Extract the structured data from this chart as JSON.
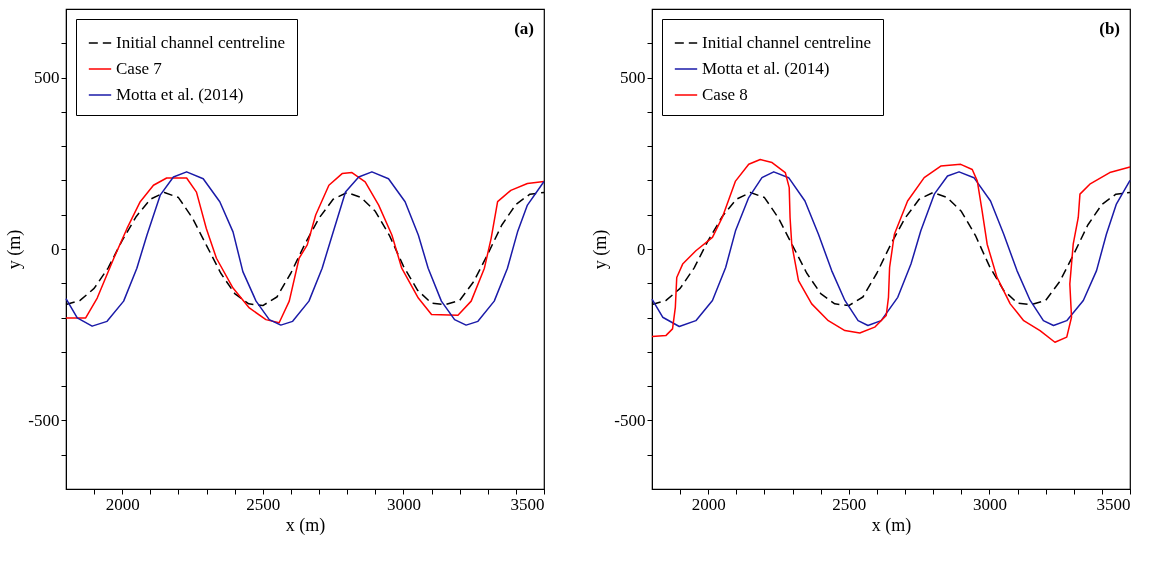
{
  "chart_data": [
    {
      "type": "line",
      "xlabel": "x (m)",
      "ylabel": "y (m)",
      "annotations": [
        "(a)"
      ],
      "xlim": [
        1800,
        3500
      ],
      "ylim": [
        -700,
        700
      ],
      "xticks": [
        {
          "value": 1900,
          "label": null
        },
        2000,
        {
          "value": 2100,
          "label": null
        },
        {
          "value": 2200,
          "label": null
        },
        {
          "value": 2300,
          "label": null
        },
        {
          "value": 2400,
          "label": null
        },
        2500,
        {
          "value": 2600,
          "label": null
        },
        {
          "value": 2700,
          "label": null
        },
        {
          "value": 2800,
          "label": null
        },
        {
          "value": 2900,
          "label": null
        },
        3000,
        {
          "value": 3100,
          "label": null
        },
        {
          "value": 3200,
          "label": null
        },
        {
          "value": 3300,
          "label": null
        },
        {
          "value": 3400,
          "label": null
        },
        3500
      ],
      "yticks": [
        {
          "value": -600,
          "label": null
        },
        -500,
        {
          "value": -400,
          "label": null
        },
        {
          "value": -300,
          "label": null
        },
        {
          "value": -200,
          "label": null
        },
        {
          "value": -100,
          "label": null
        },
        0,
        {
          "value": 100,
          "label": null
        },
        {
          "value": 200,
          "label": null
        },
        {
          "value": 300,
          "label": null
        },
        {
          "value": 400,
          "label": null
        },
        500,
        {
          "value": 600,
          "label": null
        }
      ],
      "grid": false,
      "legend": "top left",
      "series": [
        {
          "name": "Initial channel centreline",
          "color": "#000000",
          "line_style": "dashed",
          "x": [
            1800,
            1850,
            1900,
            1950,
            2000,
            2050,
            2100,
            2150,
            2200,
            2250,
            2300,
            2350,
            2400,
            2450,
            2500,
            2550,
            2600,
            2650,
            2700,
            2750,
            2800,
            2850,
            2900,
            2950,
            3000,
            3050,
            3100,
            3150,
            3200,
            3250,
            3300,
            3350,
            3400,
            3450,
            3500
          ],
          "values": [
            -162,
            -150,
            -115,
            -55,
            25,
            95,
            145,
            165,
            150,
            90,
            10,
            -70,
            -130,
            -160,
            -165,
            -140,
            -70,
            15,
            90,
            145,
            165,
            150,
            110,
            40,
            -50,
            -120,
            -158,
            -162,
            -150,
            -95,
            -15,
            70,
            130,
            160,
            165
          ]
        },
        {
          "name": "Case 7",
          "color": "#ff0000",
          "line_style": "solid",
          "x": [
            1800,
            1870,
            1911,
            1970,
            2017,
            2064,
            2111,
            2158,
            2229,
            2264,
            2299,
            2335,
            2394,
            2452,
            2511,
            2558,
            2594,
            2629,
            2658,
            2688,
            2735,
            2782,
            2817,
            2864,
            2912,
            2959,
            2994,
            3053,
            3100,
            3194,
            3241,
            3288,
            3312,
            3335,
            3382,
            3441,
            3500
          ],
          "values": [
            -201,
            -201,
            -143,
            -27,
            60,
            138,
            186,
            207,
            207,
            166,
            60,
            -27,
            -114,
            -172,
            -206,
            -215,
            -152,
            -27,
            12,
            99,
            186,
            220,
            223,
            196,
            128,
            41,
            -56,
            -143,
            -191,
            -193,
            -152,
            -56,
            31,
            138,
            171,
            191,
            197
          ]
        },
        {
          "name": "Motta et al. (2014)",
          "color": "#1a1aa8",
          "line_style": "solid",
          "x": [
            1800,
            1840,
            1893,
            1946,
            2005,
            2052,
            2088,
            2135,
            2182,
            2229,
            2288,
            2347,
            2394,
            2429,
            2476,
            2523,
            2564,
            2606,
            2664,
            2711,
            2747,
            2794,
            2841,
            2888,
            2947,
            3006,
            3053,
            3088,
            3135,
            3182,
            3223,
            3265,
            3323,
            3370,
            3406,
            3441,
            3500
          ],
          "values": [
            -145,
            -201,
            -225,
            -211,
            -152,
            -56,
            41,
            157,
            210,
            225,
            205,
            138,
            50,
            -66,
            -152,
            -206,
            -222,
            -211,
            -152,
            -56,
            41,
            166,
            210,
            225,
            205,
            138,
            41,
            -56,
            -152,
            -206,
            -222,
            -211,
            -152,
            -56,
            50,
            128,
            197
          ]
        }
      ]
    },
    {
      "type": "line",
      "xlabel": "x (m)",
      "ylabel": "y (m)",
      "annotations": [
        "(b)"
      ],
      "xlim": [
        1800,
        3500
      ],
      "ylim": [
        -700,
        700
      ],
      "xticks": [
        {
          "value": 1900,
          "label": null
        },
        2000,
        {
          "value": 2100,
          "label": null
        },
        {
          "value": 2200,
          "label": null
        },
        {
          "value": 2300,
          "label": null
        },
        {
          "value": 2400,
          "label": null
        },
        2500,
        {
          "value": 2600,
          "label": null
        },
        {
          "value": 2700,
          "label": null
        },
        {
          "value": 2800,
          "label": null
        },
        {
          "value": 2900,
          "label": null
        },
        3000,
        {
          "value": 3100,
          "label": null
        },
        {
          "value": 3200,
          "label": null
        },
        {
          "value": 3300,
          "label": null
        },
        {
          "value": 3400,
          "label": null
        },
        3500
      ],
      "yticks": [
        {
          "value": -600,
          "label": null
        },
        -500,
        {
          "value": -400,
          "label": null
        },
        {
          "value": -300,
          "label": null
        },
        {
          "value": -200,
          "label": null
        },
        {
          "value": -100,
          "label": null
        },
        0,
        {
          "value": 100,
          "label": null
        },
        {
          "value": 200,
          "label": null
        },
        {
          "value": 300,
          "label": null
        },
        {
          "value": 400,
          "label": null
        },
        500,
        {
          "value": 600,
          "label": null
        }
      ],
      "grid": false,
      "legend": "top left",
      "series": [
        {
          "name": "Initial channel centreline",
          "color": "#000000",
          "line_style": "dashed",
          "x": [
            1800,
            1850,
            1900,
            1950,
            2000,
            2050,
            2100,
            2150,
            2200,
            2250,
            2300,
            2350,
            2400,
            2450,
            2500,
            2550,
            2600,
            2650,
            2700,
            2750,
            2800,
            2850,
            2900,
            2950,
            3000,
            3050,
            3100,
            3150,
            3200,
            3250,
            3300,
            3350,
            3400,
            3450,
            3500
          ],
          "values": [
            -162,
            -150,
            -115,
            -55,
            25,
            95,
            145,
            165,
            150,
            90,
            10,
            -70,
            -130,
            -160,
            -165,
            -140,
            -70,
            15,
            90,
            145,
            165,
            150,
            110,
            40,
            -50,
            -120,
            -158,
            -162,
            -150,
            -95,
            -15,
            70,
            130,
            160,
            165
          ]
        },
        {
          "name": "Motta et al. (2014)",
          "color": "#1a1aa8",
          "line_style": "solid",
          "x": [
            1800,
            1838,
            1897,
            1956,
            2015,
            2062,
            2097,
            2144,
            2191,
            2233,
            2286,
            2344,
            2392,
            2439,
            2486,
            2533,
            2568,
            2615,
            2674,
            2721,
            2756,
            2804,
            2851,
            2892,
            2945,
            3004,
            3051,
            3098,
            3145,
            3192,
            3228,
            3275,
            3334,
            3381,
            3416,
            3451,
            3500
          ],
          "values": [
            -146,
            -199,
            -226,
            -209,
            -150,
            -54,
            53,
            150,
            208,
            225,
            208,
            140,
            43,
            -63,
            -150,
            -209,
            -223,
            -209,
            -141,
            -44,
            53,
            160,
            213,
            225,
            208,
            140,
            43,
            -63,
            -150,
            -209,
            -223,
            -209,
            -150,
            -63,
            43,
            130,
            200
          ]
        },
        {
          "name": "Case 8",
          "color": "#ff0000",
          "line_style": "solid",
          "x": [
            1800,
            1850,
            1873,
            1883,
            1888,
            1909,
            1956,
            2015,
            2050,
            2097,
            2144,
            2185,
            2227,
            2274,
            2288,
            2291,
            2297,
            2321,
            2368,
            2427,
            2486,
            2539,
            2592,
            2633,
            2641,
            2645,
            2662,
            2709,
            2768,
            2827,
            2898,
            2939,
            2957,
            2974,
            2992,
            3027,
            3074,
            3122,
            3180,
            3233,
            3275,
            3292,
            3286,
            3298,
            3316,
            3322,
            3357,
            3428,
            3500
          ],
          "values": [
            -255,
            -252,
            -233,
            -170,
            -83,
            -44,
            -5,
            34,
            92,
            198,
            247,
            261,
            252,
            223,
            179,
            92,
            14,
            -92,
            -160,
            -209,
            -238,
            -245,
            -228,
            -194,
            -141,
            -54,
            43,
            140,
            208,
            242,
            247,
            232,
            198,
            111,
            14,
            -83,
            -160,
            -209,
            -238,
            -272,
            -257,
            -199,
            -102,
            14,
            92,
            160,
            189,
            223,
            239
          ]
        }
      ]
    }
  ]
}
